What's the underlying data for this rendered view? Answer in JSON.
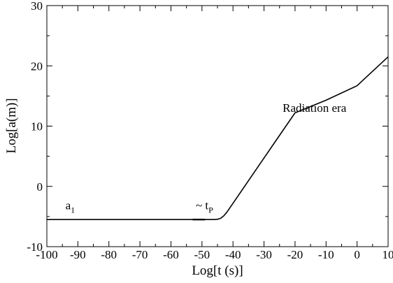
{
  "chart_data": {
    "type": "line",
    "xlabel": "Log[t (s)]",
    "ylabel": "Log[a(m)]",
    "xlim": [
      -100,
      10
    ],
    "ylim": [
      -10,
      30
    ],
    "xticks": [
      -100,
      -90,
      -80,
      -70,
      -60,
      -50,
      -40,
      -30,
      -20,
      -10,
      0,
      10
    ],
    "yticks": [
      -10,
      0,
      10,
      20,
      30
    ],
    "grid": false,
    "series": [
      {
        "color": "#000000",
        "x": [
          -100,
          -50,
          -46,
          -45,
          -44,
          -43,
          -42,
          -40,
          -30,
          -20,
          -10,
          0,
          10
        ],
        "y": [
          -5.5,
          -5.5,
          -5.5,
          -5.45,
          -5.3,
          -4.9,
          -4.3,
          -2.8,
          4.7,
          12.2,
          14.3,
          16.7,
          21.5
        ]
      }
    ],
    "annotations": [
      {
        "base": "a",
        "sub": "1",
        "x": -94,
        "y": -3.8
      },
      {
        "base": "~ t",
        "sub": "P",
        "x": -52,
        "y": -3.8
      },
      {
        "base": "Radiation era",
        "sub": "",
        "x": -24,
        "y": 12.4
      }
    ],
    "marker_segment": {
      "x": [
        -53,
        -49
      ],
      "y": -5.5
    }
  }
}
